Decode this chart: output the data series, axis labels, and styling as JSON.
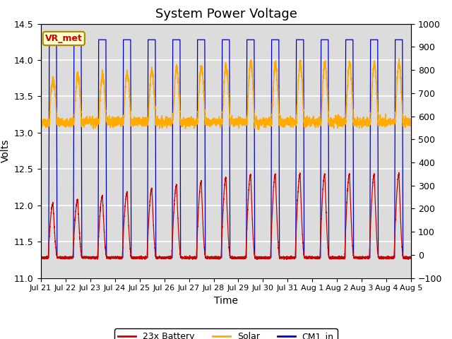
{
  "title": "System Power Voltage",
  "xlabel": "Time",
  "ylabel_left": "Volts",
  "ylabel_right": "",
  "xlim_start": 0,
  "xlim_end": 15,
  "ylim_left": [
    11.0,
    14.5
  ],
  "ylim_right": [
    -100,
    1000
  ],
  "yticks_left": [
    11.0,
    11.5,
    12.0,
    12.5,
    13.0,
    13.5,
    14.0,
    14.5
  ],
  "yticks_right": [
    -100,
    0,
    100,
    200,
    300,
    400,
    500,
    600,
    700,
    800,
    900,
    1000
  ],
  "xtick_labels": [
    "Jul 21",
    "Jul 22",
    "Jul 23",
    "Jul 24",
    "Jul 25",
    "Jul 26",
    "Jul 27",
    "Jul 28",
    "Jul 29",
    "Jul 30",
    "Jul 31",
    "Aug 1",
    "Aug 2",
    "Aug 3",
    "Aug 4",
    "Aug 5"
  ],
  "color_battery": "#cc0000",
  "color_solar": "#ffaa00",
  "color_cm1": "#0000cc",
  "color_background": "#dcdcdc",
  "color_grid": "#ffffff",
  "annotation_text": "VR_met",
  "annotation_bg": "#ffffcc",
  "annotation_border": "#aa8800",
  "legend_labels": [
    "23x Battery",
    "Solar",
    "CM1_in"
  ],
  "title_fontsize": 13,
  "label_fontsize": 10,
  "tick_fontsize": 9
}
